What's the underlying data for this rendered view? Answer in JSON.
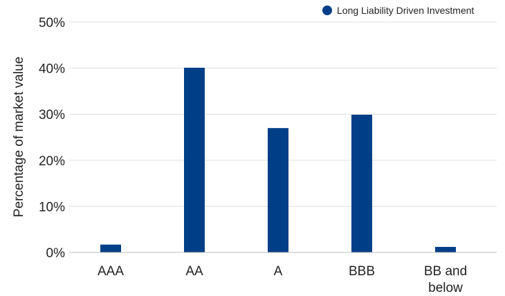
{
  "chart_data": {
    "type": "bar",
    "categories": [
      "AAA",
      "AA",
      "A",
      "BBB",
      "BB and below"
    ],
    "category_lines": [
      [
        "AAA"
      ],
      [
        "AA"
      ],
      [
        "A"
      ],
      [
        "BBB"
      ],
      [
        "BB and",
        "below"
      ]
    ],
    "series": [
      {
        "name": "Long Liability Driven Investment",
        "values": [
          1.7,
          40.1,
          27.0,
          29.9,
          1.2
        ],
        "color": "#003f87"
      }
    ],
    "ylabel": "Percentage of market value",
    "ylim": [
      0,
      50
    ],
    "yticks": [
      0,
      10,
      20,
      30,
      40,
      50
    ],
    "ytick_labels": [
      "0%",
      "10%",
      "20%",
      "30%",
      "40%",
      "50%"
    ],
    "grid": true,
    "legend": "top-right"
  }
}
